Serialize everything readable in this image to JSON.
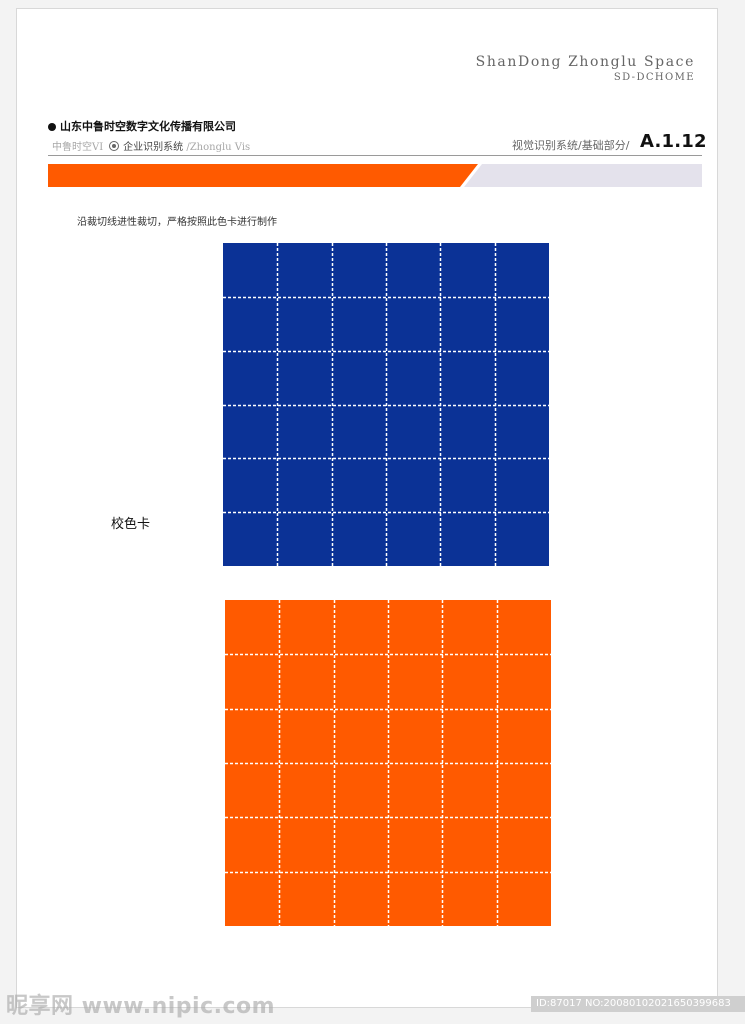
{
  "header": {
    "brand_en": "ShanDong Zhonglu Space",
    "brand_sub": "SD-DCHOME",
    "company_name": "山东中鲁时空数字文化传播有限公司",
    "subtitle_prefix": "中鲁时空VI",
    "subtitle_main": "企业识别系统",
    "subtitle_suffix": "/Zhonglu Vis",
    "section_label": "视觉识别系统/基础部分/",
    "section_code": "A.1.12"
  },
  "content": {
    "instruction": "沿裁切线进性裁切，严格按照此色卡进行制作",
    "side_label": "校色卡"
  },
  "colors": {
    "orange": "#ff5a00",
    "blue": "#0b3296",
    "band_gray": "#e4e2ec"
  },
  "watermark": {
    "logo_text": "昵享网 www.nipic.com",
    "id_text": "ID:87017 NO:20080102021650399683"
  }
}
